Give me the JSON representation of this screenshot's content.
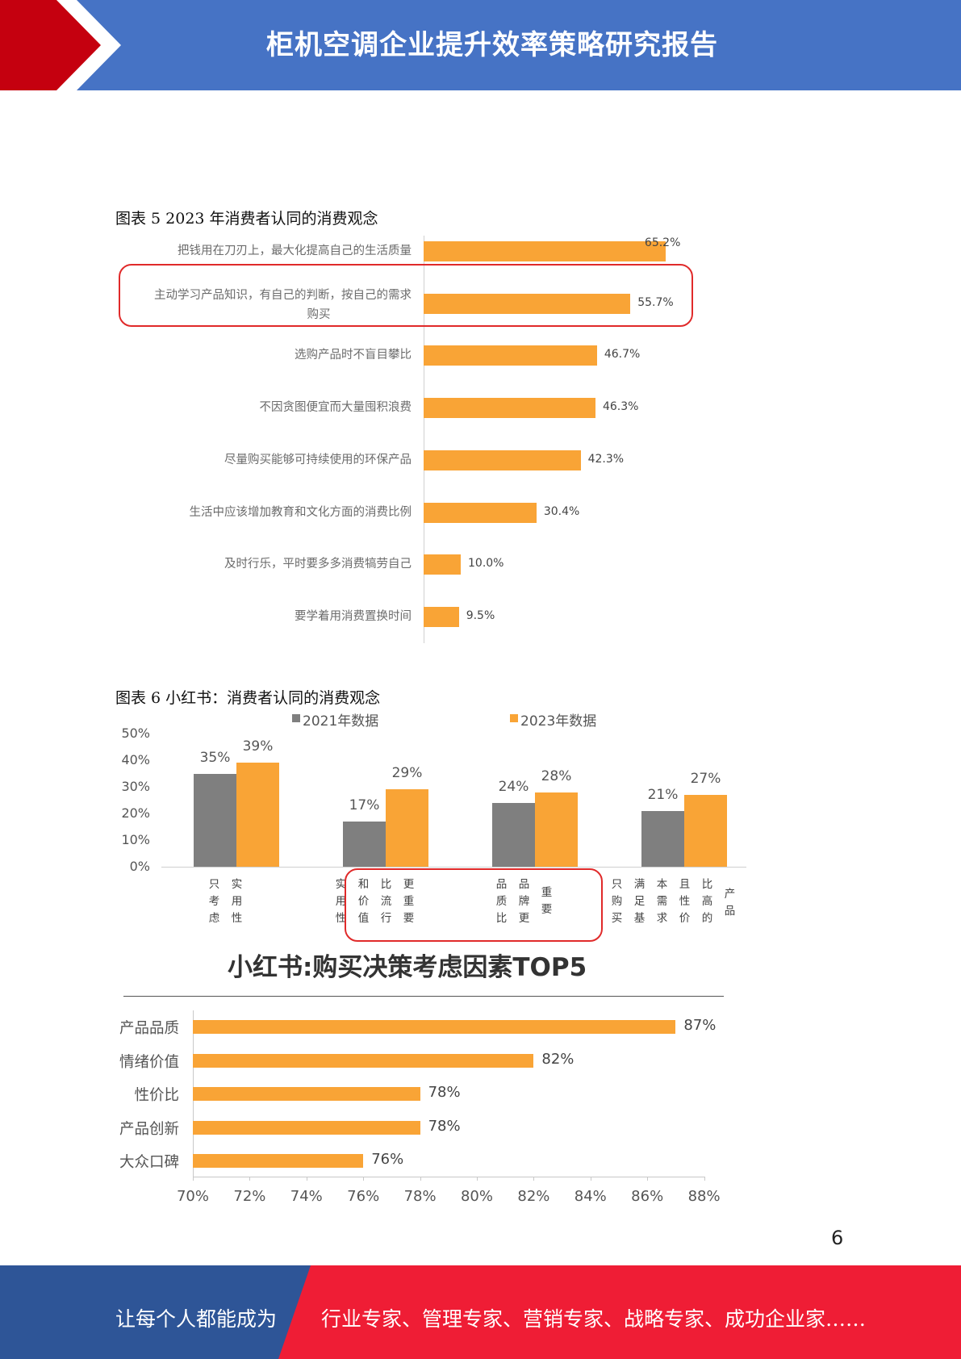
{
  "header": {
    "title": "柜机空调企业提升效率策略研究报告",
    "colors": {
      "blue": "#4673c5",
      "red": "#c5000f"
    }
  },
  "figure5": {
    "caption": "图表  5 2023 年消费者认同的消费观念",
    "chart_data": {
      "type": "bar",
      "orientation": "horizontal",
      "categories": [
        "把钱用在刀刃上，最大化提高自己的生活质量",
        "主动学习产品知识，有自己的判断，按自己的需求购买",
        "选购产品时不盲目攀比",
        "不因贪图便宜而大量囤积浪费",
        "尽量购买能够可持续使用的环保产品",
        "生活中应该增加教育和文化方面的消费比例",
        "及时行乐，平时要多多消费犒劳自己",
        "要学着用消费置换时间"
      ],
      "category_lines": [
        [
          "把钱用在刀刃上，最大化提高自己的生活质量"
        ],
        [
          "主动学习产品知识，有自己的判断，按自己的需求",
          "购买"
        ],
        [
          "选购产品时不盲目攀比"
        ],
        [
          "不因贪图便宜而大量囤积浪费"
        ],
        [
          "尽量购买能够可持续使用的环保产品"
        ],
        [
          "生活中应该增加教育和文化方面的消费比例"
        ],
        [
          "及时行乐，平时要多多消费犒劳自己"
        ],
        [
          "要学着用消费置换时间"
        ]
      ],
      "values": [
        65.2,
        55.7,
        46.7,
        46.3,
        42.3,
        30.4,
        10.0,
        9.5
      ],
      "value_labels": [
        "65.2%",
        "55.7%",
        "46.7%",
        "46.3%",
        "42.3%",
        "30.4%",
        "10.0%",
        "9.5%"
      ],
      "highlighted_category": "主动学习产品知识，有自己的判断，按自己的需求购买",
      "color": "#f9a436"
    }
  },
  "figure6": {
    "caption": "图表  6  小红书：消费者认同的消费观念",
    "chart_data": {
      "type": "bar",
      "categories": [
        "只考虑实用性",
        "实用性价值和比价流行更重要",
        "品质比品牌更重要",
        "只购买满足基本需求且性价比高的产品"
      ],
      "category_columns": [
        [
          "只考虑",
          "实用性"
        ],
        [
          "实用性",
          "和价值",
          "比流行",
          "更重要"
        ],
        [
          "品质比",
          "品牌更",
          "重要"
        ],
        [
          "只购买",
          "满足基",
          "本需求",
          "且性价",
          "比高的",
          "产品"
        ]
      ],
      "series": [
        {
          "name": "2021年数据",
          "values": [
            35,
            17,
            24,
            21
          ],
          "labels": [
            "35%",
            "17%",
            "24%",
            "21%"
          ],
          "color": "#7f7f7f"
        },
        {
          "name": "2023年数据",
          "values": [
            39,
            29,
            28,
            27
          ],
          "labels": [
            "39%",
            "29%",
            "28%",
            "27%"
          ],
          "color": "#f9a436"
        }
      ],
      "y_ticks": [
        "0%",
        "10%",
        "20%",
        "30%",
        "40%",
        "50%"
      ],
      "ylim": [
        0,
        50
      ],
      "legend_position": "top"
    }
  },
  "figure7": {
    "chart_data": {
      "type": "bar",
      "orientation": "horizontal",
      "title": "小红书:购买决策考虑因素TOP5",
      "categories": [
        "产品品质",
        "情绪价值",
        "性价比",
        "产品创新",
        "大众口碑"
      ],
      "values": [
        87,
        82,
        78,
        78,
        76
      ],
      "value_labels": [
        "87%",
        "82%",
        "78%",
        "78%",
        "76%"
      ],
      "x_ticks": [
        "70%",
        "72%",
        "74%",
        "76%",
        "78%",
        "80%",
        "82%",
        "84%",
        "86%",
        "88%"
      ],
      "xlim": [
        70,
        88
      ],
      "color": "#f9a436"
    }
  },
  "page_number": "6",
  "footer": {
    "left_text": "让每个人都能成为",
    "right_text": "行业专家、管理专家、营销专家、战略专家、成功企业家……",
    "colors": {
      "blue": "#2e5597",
      "red": "#ef1d35"
    }
  }
}
